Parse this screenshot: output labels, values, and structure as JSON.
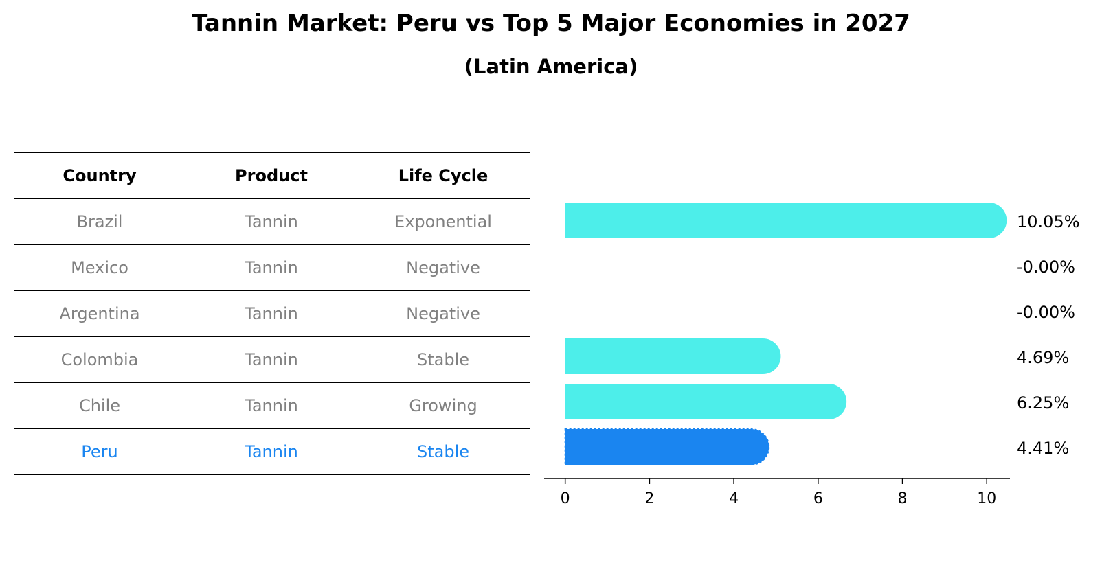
{
  "title": "Tannin Market: Peru vs Top 5 Major Economies in 2027",
  "subtitle": "(Latin America)",
  "table": {
    "headers": [
      "Country",
      "Product",
      "Life Cycle"
    ],
    "rows": [
      {
        "country": "Brazil",
        "product": "Tannin",
        "life_cycle": "Exponential"
      },
      {
        "country": "Mexico",
        "product": "Tannin",
        "life_cycle": "Negative"
      },
      {
        "country": "Argentina",
        "product": "Tannin",
        "life_cycle": "Negative"
      },
      {
        "country": "Colombia",
        "product": "Tannin",
        "life_cycle": "Stable"
      },
      {
        "country": "Chile",
        "product": "Tannin",
        "life_cycle": "Growing"
      },
      {
        "country": "Peru",
        "product": "Tannin",
        "life_cycle": "Stable"
      }
    ]
  },
  "colors": {
    "bar": "#4DEEEA",
    "highlight": "#1A85F0",
    "row_text": "#808080",
    "highlight_text": "#1A85F0"
  },
  "chart_data": {
    "type": "bar",
    "orientation": "horizontal",
    "categories": [
      "Brazil",
      "Mexico",
      "Argentina",
      "Colombia",
      "Chile",
      "Peru"
    ],
    "values": [
      10.05,
      -0.0,
      -0.0,
      4.69,
      6.25,
      4.41
    ],
    "value_labels": [
      "10.05%",
      "-0.00%",
      "-0.00%",
      "4.69%",
      "6.25%",
      "4.41%"
    ],
    "highlight": "Peru",
    "xlim": [
      -0.5,
      10.55
    ],
    "xticks": [
      0,
      2,
      4,
      6,
      8,
      10
    ],
    "tick_labels": [
      "0",
      "2",
      "4",
      "6",
      "8",
      "10"
    ],
    "xlabel": "",
    "ylabel": "",
    "grid": false
  }
}
